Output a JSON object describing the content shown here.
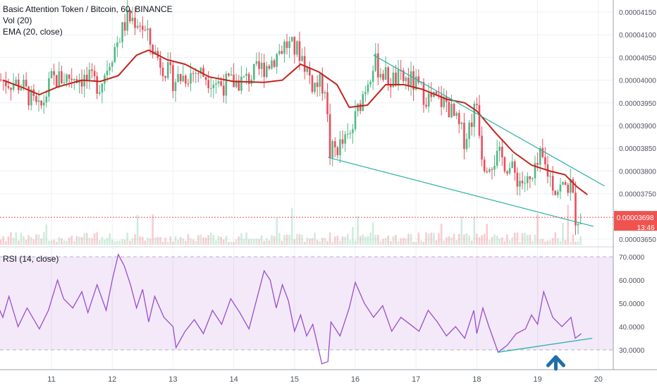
{
  "chart_data": [
    {
      "type": "candlestick",
      "legend": {
        "title": "Basic Attention Token / Bitcoin, 60, BINANCE",
        "volume": "Vol (20)",
        "ema": "EMA (20, close)"
      },
      "price_ticks": [
        "0.00004150",
        "0.00004100",
        "0.00004050",
        "0.00004000",
        "0.00003950",
        "0.00003900",
        "0.00003850",
        "0.00003800",
        "0.00003750",
        "0.00003650"
      ],
      "price_range": [
        3.63e-05,
        4.16e-05
      ],
      "last_price": "0.00003698",
      "countdown": "13:46",
      "x_ticks": [
        "11",
        "12",
        "13",
        "14",
        "15",
        "16",
        "17",
        "18",
        "19",
        "20"
      ],
      "colors": {
        "up": "#53b987",
        "down": "#eb4d5c",
        "ema": "#c0251c",
        "trendline": "#2bb3a6",
        "last_price": "#ef5350"
      },
      "ema_path": [
        {
          "day": 10.2,
          "price": 4e-05
        },
        {
          "day": 10.5,
          "price": 3.985e-05
        },
        {
          "day": 10.8,
          "price": 3.968e-05
        },
        {
          "day": 11.1,
          "price": 3.985e-05
        },
        {
          "day": 11.5,
          "price": 4e-05
        },
        {
          "day": 11.8,
          "price": 3.997e-05
        },
        {
          "day": 12.1,
          "price": 4.01e-05
        },
        {
          "day": 12.4,
          "price": 4.055e-05
        },
        {
          "day": 12.6,
          "price": 4.066e-05
        },
        {
          "day": 12.9,
          "price": 4.045e-05
        },
        {
          "day": 13.2,
          "price": 4.035e-05
        },
        {
          "day": 13.6,
          "price": 4.007e-05
        },
        {
          "day": 14.0,
          "price": 3.997e-05
        },
        {
          "day": 14.5,
          "price": 3.995e-05
        },
        {
          "day": 14.8,
          "price": 4e-05
        },
        {
          "day": 15.1,
          "price": 4.035e-05
        },
        {
          "day": 15.4,
          "price": 4.018e-05
        },
        {
          "day": 15.7,
          "price": 3.99e-05
        },
        {
          "day": 15.9,
          "price": 3.94e-05
        },
        {
          "day": 16.2,
          "price": 3.945e-05
        },
        {
          "day": 16.5,
          "price": 3.99e-05
        },
        {
          "day": 16.8,
          "price": 3.99e-05
        },
        {
          "day": 17.1,
          "price": 3.98e-05
        },
        {
          "day": 17.5,
          "price": 3.958e-05
        },
        {
          "day": 17.8,
          "price": 3.95e-05
        },
        {
          "day": 18.0,
          "price": 3.932e-05
        },
        {
          "day": 18.3,
          "price": 3.885e-05
        },
        {
          "day": 18.6,
          "price": 3.842e-05
        },
        {
          "day": 18.9,
          "price": 3.813e-05
        },
        {
          "day": 19.2,
          "price": 3.8e-05
        },
        {
          "day": 19.45,
          "price": 3.792e-05
        },
        {
          "day": 19.65,
          "price": 3.765e-05
        },
        {
          "day": 19.82,
          "price": 3.748e-05
        }
      ],
      "trendlines": [
        {
          "from": {
            "day": 16.3,
            "price": 4.055e-05
          },
          "to": {
            "day": 20.1,
            "price": 3.767e-05
          }
        },
        {
          "from": {
            "day": 15.55,
            "price": 3.83e-05
          },
          "to": {
            "day": 19.92,
            "price": 3.678e-05
          }
        }
      ],
      "candles_seed": 7,
      "anchors": [
        {
          "day": 10.0,
          "price": 4.005e-05
        },
        {
          "day": 10.5,
          "price": 3.99e-05
        },
        {
          "day": 10.8,
          "price": 3.93e-05
        },
        {
          "day": 11.0,
          "price": 4e-05
        },
        {
          "day": 11.4,
          "price": 4.01e-05
        },
        {
          "day": 11.8,
          "price": 3.99e-05
        },
        {
          "day": 12.0,
          "price": 4.06e-05
        },
        {
          "day": 12.25,
          "price": 4.135e-05
        },
        {
          "day": 12.45,
          "price": 4.13e-05
        },
        {
          "day": 12.7,
          "price": 4.06e-05
        },
        {
          "day": 13.0,
          "price": 4e-05
        },
        {
          "day": 13.4,
          "price": 4.02e-05
        },
        {
          "day": 13.8,
          "price": 3.99e-05
        },
        {
          "day": 14.2,
          "price": 4e-05
        },
        {
          "day": 14.6,
          "price": 4.04e-05
        },
        {
          "day": 14.85,
          "price": 4.08e-05
        },
        {
          "day": 15.1,
          "price": 4.06e-05
        },
        {
          "day": 15.3,
          "price": 3.99e-05
        },
        {
          "day": 15.5,
          "price": 3.99e-05
        },
        {
          "day": 15.58,
          "price": 3.84e-05
        },
        {
          "day": 15.9,
          "price": 3.87e-05
        },
        {
          "day": 16.1,
          "price": 3.96e-05
        },
        {
          "day": 16.3,
          "price": 4.04e-05
        },
        {
          "day": 16.55,
          "price": 4e-05
        },
        {
          "day": 16.9,
          "price": 4e-05
        },
        {
          "day": 17.2,
          "price": 3.96e-05
        },
        {
          "day": 17.5,
          "price": 3.95e-05
        },
        {
          "day": 17.8,
          "price": 3.87e-05
        },
        {
          "day": 18.0,
          "price": 3.95e-05
        },
        {
          "day": 18.1,
          "price": 3.82e-05
        },
        {
          "day": 18.4,
          "price": 3.83e-05
        },
        {
          "day": 18.7,
          "price": 3.78e-05
        },
        {
          "day": 18.9,
          "price": 3.77e-05
        },
        {
          "day": 19.05,
          "price": 3.83e-05
        },
        {
          "day": 19.3,
          "price": 3.76e-05
        },
        {
          "day": 19.55,
          "price": 3.77e-05
        },
        {
          "day": 19.62,
          "price": 3.7e-05
        },
        {
          "day": 19.72,
          "price": 3.698e-05
        }
      ]
    },
    {
      "type": "line",
      "legend": "RSI (14, close)",
      "y_ticks": [
        "70.0000",
        "60.0000",
        "50.0000",
        "40.0000",
        "30.0000"
      ],
      "ylim": [
        22,
        72
      ],
      "band": [
        30,
        70
      ],
      "colors": {
        "line": "#9b4dca",
        "band": "rgba(155,77,202,0.12)",
        "support": "#2bb3a6",
        "arrow": "#1f6fa8"
      },
      "x": [
        10.0,
        10.1,
        10.2,
        10.3,
        10.45,
        10.6,
        10.8,
        10.95,
        11.1,
        11.2,
        11.35,
        11.5,
        11.6,
        11.75,
        11.9,
        12.0,
        12.1,
        12.2,
        12.3,
        12.4,
        12.5,
        12.6,
        12.7,
        12.85,
        13.0,
        13.05,
        13.2,
        13.35,
        13.5,
        13.65,
        13.8,
        13.95,
        14.1,
        14.25,
        14.4,
        14.5,
        14.6,
        14.7,
        14.8,
        14.9,
        15.0,
        15.1,
        15.2,
        15.3,
        15.45,
        15.55,
        15.6,
        15.75,
        15.9,
        16.0,
        16.15,
        16.3,
        16.45,
        16.6,
        16.75,
        16.9,
        17.05,
        17.2,
        17.35,
        17.5,
        17.65,
        17.8,
        17.95,
        18.0,
        18.1,
        18.2,
        18.35,
        18.5,
        18.65,
        18.8,
        18.9,
        19.0,
        19.1,
        19.25,
        19.4,
        19.55,
        19.62,
        19.72
      ],
      "values": [
        52,
        50,
        44,
        53,
        40,
        48,
        39,
        47,
        60,
        52,
        48,
        55,
        46,
        58,
        47,
        60,
        71,
        66,
        58,
        48,
        56,
        42,
        53,
        44,
        40,
        31,
        38,
        43,
        37,
        47,
        41,
        52,
        46,
        39,
        54,
        64,
        60,
        48,
        58,
        51,
        38,
        45,
        36,
        41,
        24,
        25,
        42,
        36,
        48,
        59,
        50,
        44,
        49,
        38,
        44,
        41,
        38,
        47,
        42,
        36,
        40,
        35,
        47,
        37,
        48,
        40,
        29,
        32,
        37,
        39,
        45,
        41,
        55,
        44,
        40,
        44,
        35,
        37
      ],
      "support_line": {
        "from": {
          "day": 18.35,
          "value": 29
        },
        "to": {
          "day": 19.9,
          "value": 35
        }
      },
      "arrow_day": 19.3
    }
  ]
}
